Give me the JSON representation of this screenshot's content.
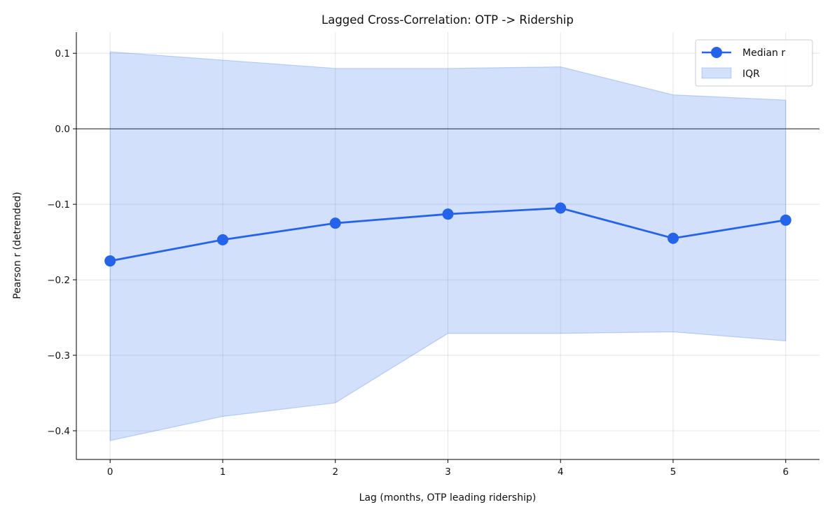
{
  "chart_data": {
    "type": "line",
    "title": "Lagged Cross-Correlation: OTP -> Ridership",
    "xlabel": "Lag (months, OTP leading ridership)",
    "ylabel": "Pearson r (detrended)",
    "xlim": [
      -0.3,
      6.3
    ],
    "ylim": [
      -0.438,
      0.128
    ],
    "xticks": [
      0,
      1,
      2,
      3,
      4,
      5,
      6
    ],
    "xtick_labels": [
      "0",
      "1",
      "2",
      "3",
      "4",
      "5",
      "6"
    ],
    "yticks": [
      0.1,
      0.0,
      -0.1,
      -0.2,
      -0.3,
      -0.4
    ],
    "ytick_labels": [
      "0.1",
      "0.0",
      "−0.1",
      "−0.2",
      "−0.3",
      "−0.4"
    ],
    "grid": true,
    "zero_line": true,
    "legend_position": "top-right",
    "x": [
      0,
      1,
      2,
      3,
      4,
      5,
      6
    ],
    "series": [
      {
        "name": "Median r",
        "kind": "line-marker",
        "color": "#2563eb",
        "values": [
          -0.175,
          -0.147,
          -0.125,
          -0.113,
          -0.105,
          -0.145,
          -0.121
        ]
      },
      {
        "name": "IQR",
        "kind": "band",
        "color": "#2563eb",
        "upper": [
          0.102,
          0.091,
          0.08,
          0.08,
          0.082,
          0.045,
          0.038
        ],
        "lower": [
          -0.413,
          -0.381,
          -0.363,
          -0.271,
          -0.271,
          -0.269,
          -0.281
        ]
      }
    ]
  }
}
